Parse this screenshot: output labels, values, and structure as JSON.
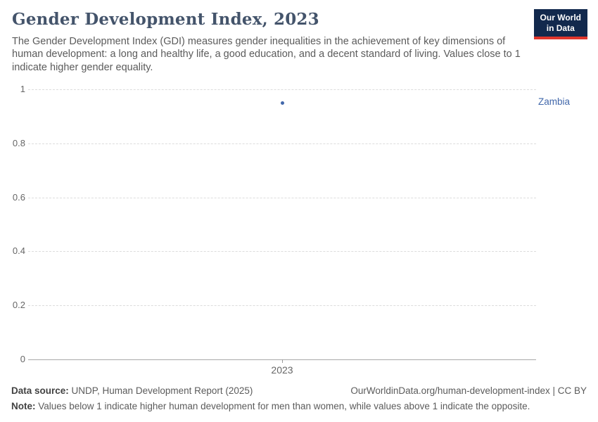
{
  "header": {
    "title": "Gender Development Index, 2023",
    "subtitle": "The Gender Development Index (GDI) measures gender inequalities in the achievement of key dimensions of human development: a long and healthy life, a good education, and a decent standard of living. Values close to 1 indicate higher gender equality.",
    "logo_line1": "Our World",
    "logo_line2": "in Data",
    "logo_colors": {
      "background": "#12294d",
      "accent": "#e0362c"
    }
  },
  "chart_data": {
    "type": "scatter",
    "title": "Gender Development Index, 2023",
    "x": [
      2023
    ],
    "xtick_labels": [
      "2023"
    ],
    "series": [
      {
        "name": "Zambia",
        "values": [
          0.95
        ],
        "color": "#4268ab"
      }
    ],
    "ylim": [
      0,
      1
    ],
    "yticks": [
      0,
      0.2,
      0.4,
      0.6,
      0.8,
      1
    ],
    "ytick_labels": [
      "0",
      "0.2",
      "0.4",
      "0.6",
      "0.8",
      "1"
    ],
    "xlabel": "",
    "ylabel": "",
    "grid": true,
    "legend_position": "right-edge-entity-label"
  },
  "footer": {
    "data_source_label": "Data source:",
    "data_source_text": " UNDP, Human Development Report (2025)",
    "url": "OurWorldinData.org/human-development-index",
    "license": " | CC BY",
    "note_label": "Note:",
    "note_text": " Values below 1 indicate higher human development for men than women, while values above 1 indicate the opposite."
  }
}
